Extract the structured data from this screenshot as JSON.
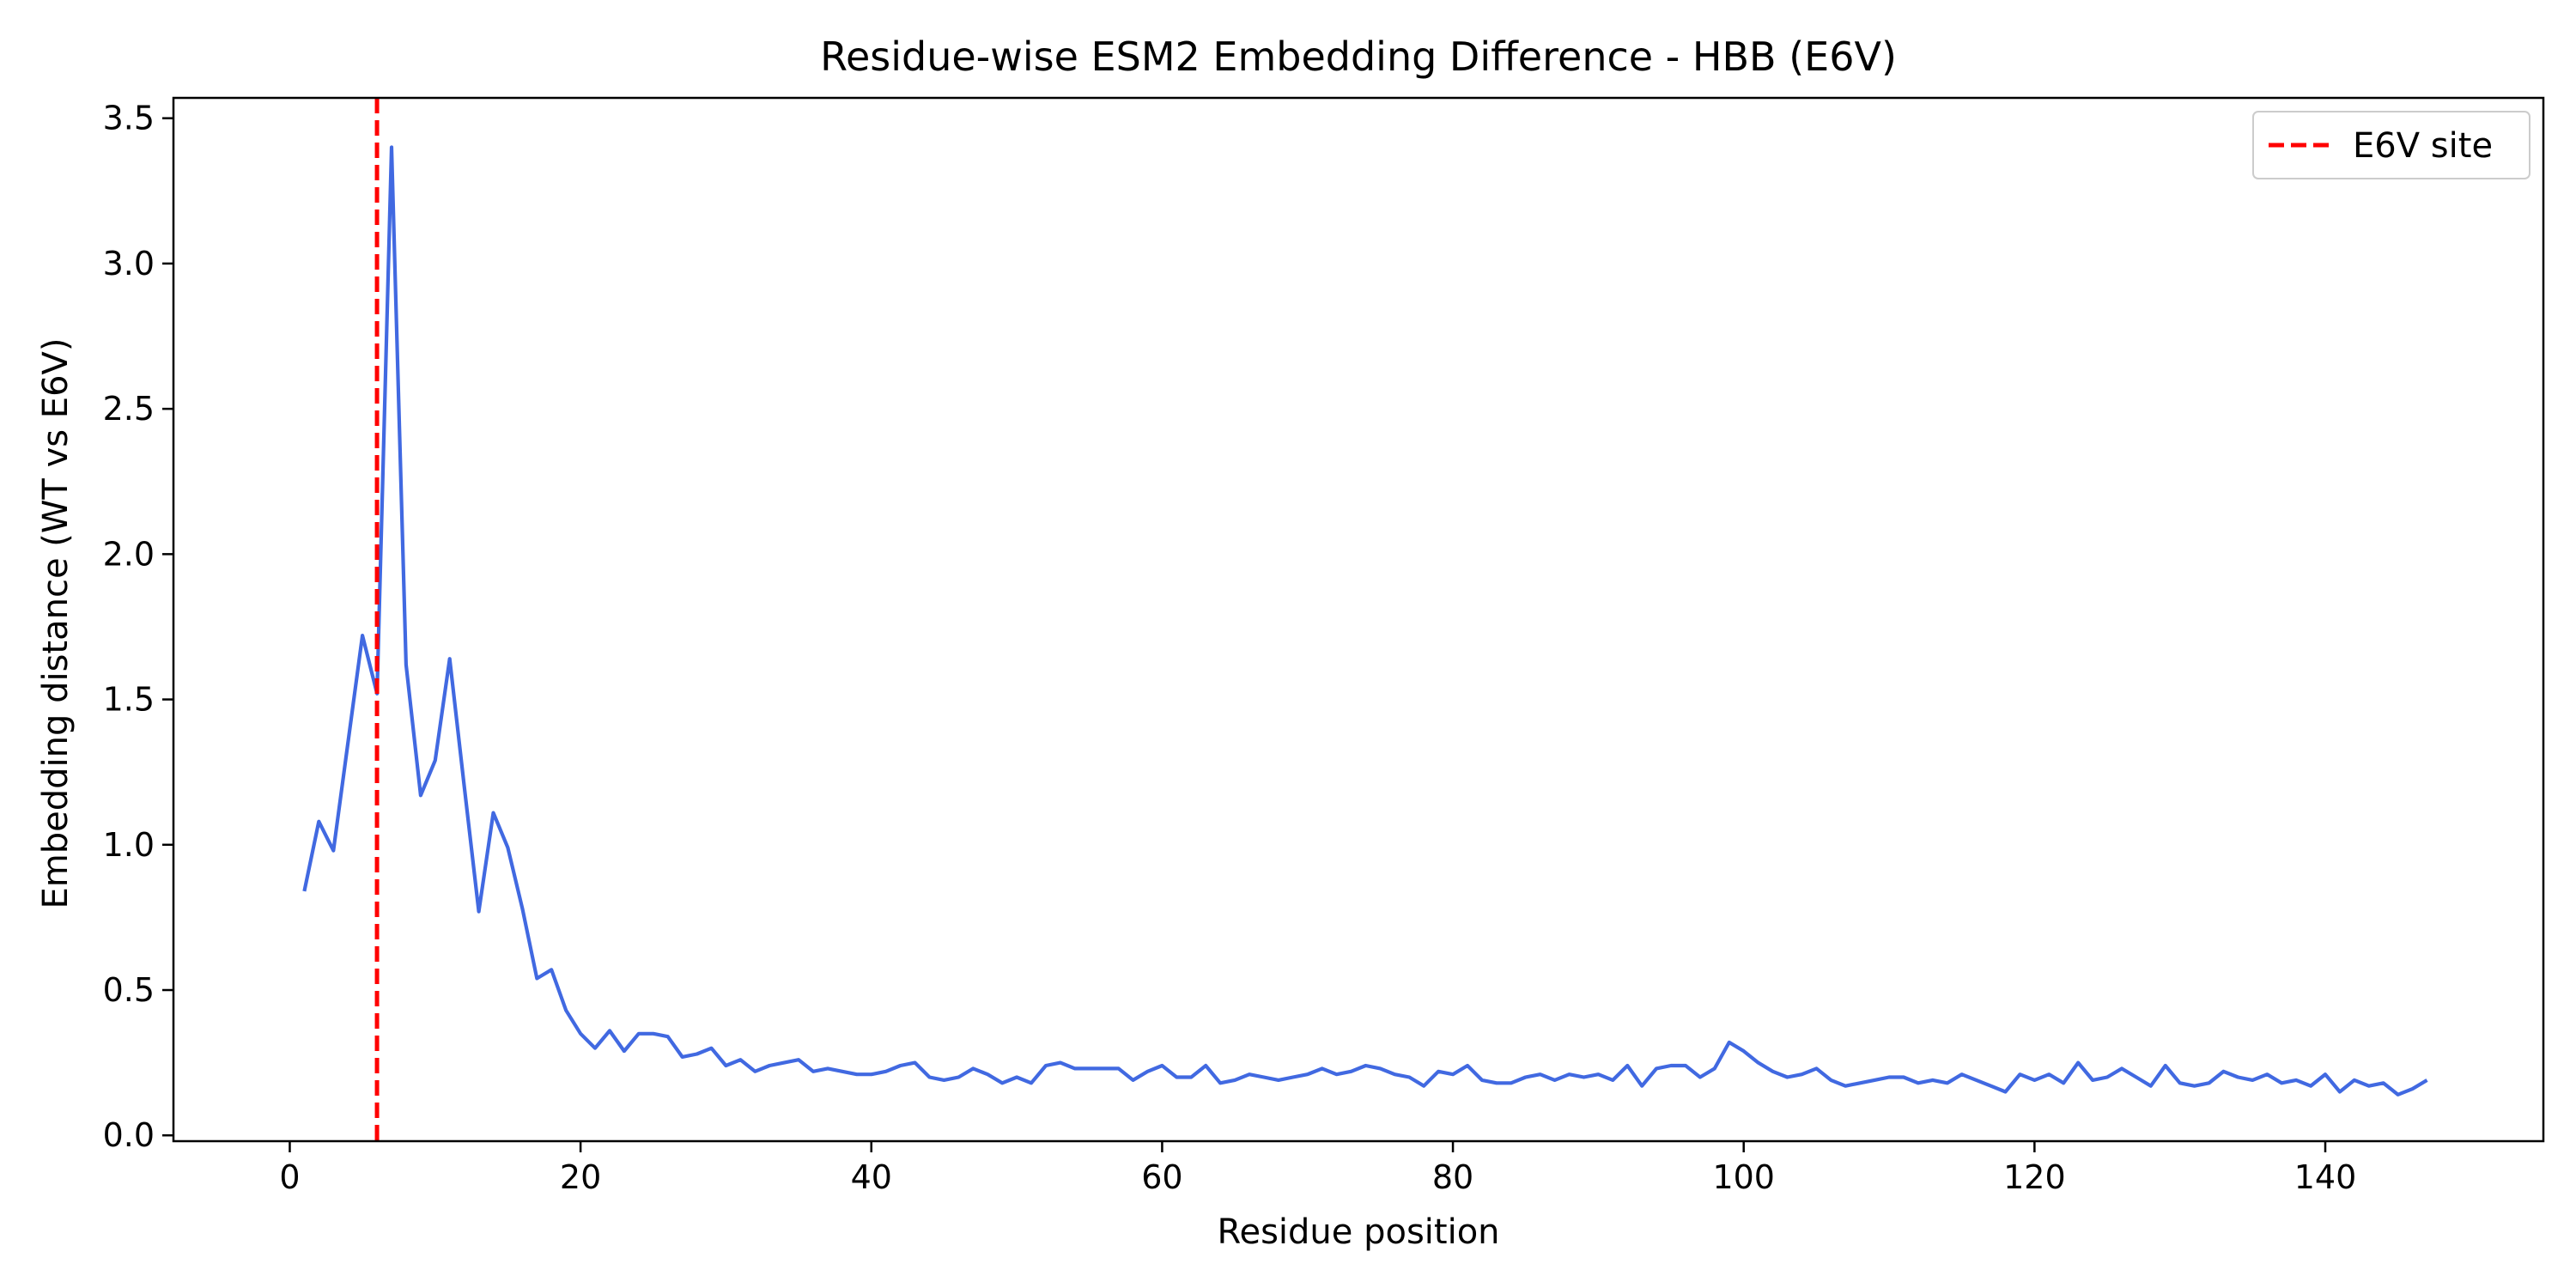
{
  "chart_data": {
    "type": "line",
    "title": "Residue-wise ESM2 Embedding Difference - HBB (E6V)",
    "xlabel": "Residue position",
    "ylabel": "Embedding distance (WT vs E6V)",
    "xlim": [
      -8,
      155
    ],
    "ylim": [
      -0.02,
      3.57
    ],
    "xticks": [
      0,
      20,
      40,
      60,
      80,
      100,
      120,
      140
    ],
    "yticks": [
      0.0,
      0.5,
      1.0,
      1.5,
      2.0,
      2.5,
      3.0,
      3.5
    ],
    "ytick_labels": [
      "0.0",
      "0.5",
      "1.0",
      "1.5",
      "2.0",
      "2.5",
      "3.0",
      "3.5"
    ],
    "grid": false,
    "legend_position": "top-right",
    "series": [
      {
        "color": "#4169e1",
        "x": [
          1,
          2,
          3,
          4,
          5,
          6,
          7,
          8,
          9,
          10,
          11,
          12,
          13,
          14,
          15,
          16,
          17,
          18,
          19,
          20,
          21,
          22,
          23,
          24,
          25,
          26,
          27,
          28,
          29,
          30,
          31,
          32,
          33,
          34,
          35,
          36,
          37,
          38,
          39,
          40,
          41,
          42,
          43,
          44,
          45,
          46,
          47,
          48,
          49,
          50,
          51,
          52,
          53,
          54,
          55,
          56,
          57,
          58,
          59,
          60,
          61,
          62,
          63,
          64,
          65,
          66,
          67,
          68,
          69,
          70,
          71,
          72,
          73,
          74,
          75,
          76,
          77,
          78,
          79,
          80,
          81,
          82,
          83,
          84,
          85,
          86,
          87,
          88,
          89,
          90,
          91,
          92,
          93,
          94,
          95,
          96,
          97,
          98,
          99,
          100,
          101,
          102,
          103,
          104,
          105,
          106,
          107,
          108,
          109,
          110,
          111,
          112,
          113,
          114,
          115,
          116,
          117,
          118,
          119,
          120,
          121,
          122,
          123,
          124,
          125,
          126,
          127,
          128,
          129,
          130,
          131,
          132,
          133,
          134,
          135,
          136,
          137,
          138,
          139,
          140,
          141,
          142,
          143,
          144,
          145,
          146,
          147
        ],
        "y": [
          0.84,
          1.08,
          0.98,
          1.35,
          1.72,
          1.52,
          3.4,
          1.62,
          1.17,
          1.29,
          1.64,
          1.2,
          0.77,
          1.11,
          0.99,
          0.78,
          0.54,
          0.57,
          0.43,
          0.35,
          0.3,
          0.36,
          0.29,
          0.35,
          0.35,
          0.34,
          0.27,
          0.28,
          0.3,
          0.24,
          0.26,
          0.22,
          0.24,
          0.25,
          0.26,
          0.22,
          0.23,
          0.22,
          0.21,
          0.21,
          0.22,
          0.24,
          0.25,
          0.2,
          0.19,
          0.2,
          0.23,
          0.21,
          0.18,
          0.2,
          0.18,
          0.24,
          0.25,
          0.23,
          0.23,
          0.23,
          0.23,
          0.19,
          0.22,
          0.24,
          0.2,
          0.2,
          0.24,
          0.18,
          0.19,
          0.21,
          0.2,
          0.19,
          0.2,
          0.21,
          0.23,
          0.21,
          0.22,
          0.24,
          0.23,
          0.21,
          0.2,
          0.17,
          0.22,
          0.21,
          0.24,
          0.19,
          0.18,
          0.18,
          0.2,
          0.21,
          0.19,
          0.21,
          0.2,
          0.21,
          0.19,
          0.24,
          0.17,
          0.23,
          0.24,
          0.24,
          0.2,
          0.23,
          0.32,
          0.29,
          0.25,
          0.22,
          0.2,
          0.21,
          0.23,
          0.19,
          0.17,
          0.18,
          0.19,
          0.2,
          0.2,
          0.18,
          0.19,
          0.18,
          0.21,
          0.19,
          0.17,
          0.15,
          0.21,
          0.19,
          0.21,
          0.18,
          0.25,
          0.19,
          0.2,
          0.23,
          0.2,
          0.17,
          0.24,
          0.18,
          0.17,
          0.18,
          0.22,
          0.2,
          0.19,
          0.21,
          0.18,
          0.19,
          0.17,
          0.21,
          0.15,
          0.19,
          0.17,
          0.18,
          0.14,
          0.16,
          0.19
        ]
      }
    ],
    "vline": {
      "x": 6,
      "color": "#ff0000",
      "label": "E6V site"
    }
  }
}
